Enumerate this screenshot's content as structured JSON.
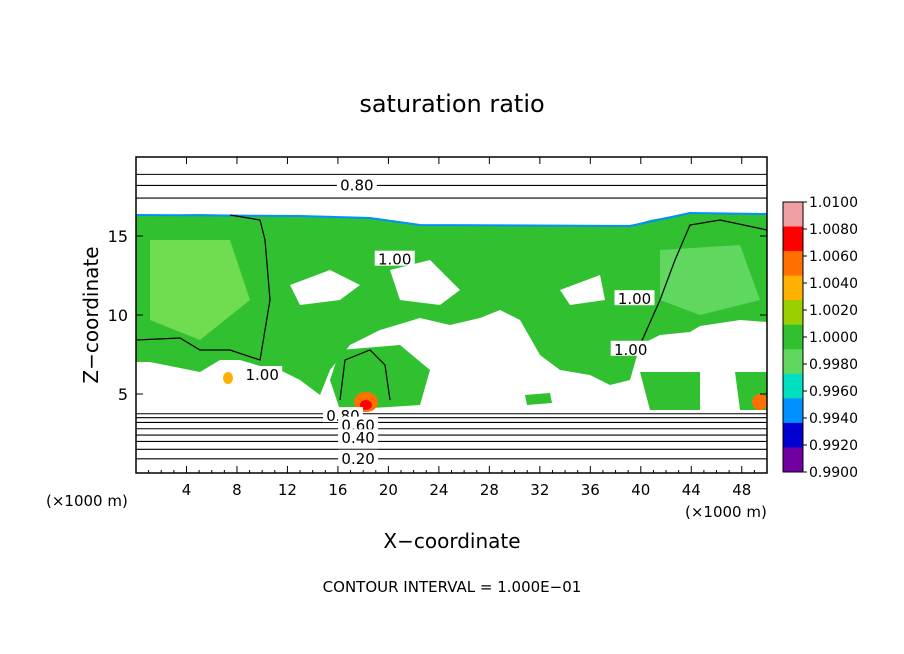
{
  "chart_data": {
    "type": "heatmap",
    "title": "saturation ratio",
    "xlabel": "X−coordinate",
    "ylabel": "Z−coordinate",
    "x_unit": "(×1000 m)",
    "y_unit": "(×1000 m)",
    "footer": "CONTOUR INTERVAL = 1.000E−01",
    "xlim": [
      0,
      50
    ],
    "ylim": [
      0,
      20
    ],
    "x_ticks": [
      4,
      8,
      12,
      16,
      20,
      24,
      28,
      32,
      36,
      40,
      44,
      48
    ],
    "y_ticks": [
      5,
      10,
      15
    ],
    "colorbar": {
      "values": [
        1.01,
        1.008,
        1.006,
        1.004,
        1.002,
        1.0,
        0.998,
        0.996,
        0.994,
        0.992,
        0.99
      ],
      "labels": [
        "1.0100",
        "1.0080",
        "1.0060",
        "1.0040",
        "1.0020",
        "1.0000",
        "0.9980",
        "0.9960",
        "0.9940",
        "0.9920",
        "0.9900"
      ],
      "colors": [
        "#f0a0a0",
        "#ff0000",
        "#ff7000",
        "#ffb000",
        "#9ad000",
        "#30c030",
        "#60d860",
        "#00e0c0",
        "#0090ff",
        "#0000d0",
        "#7000a0"
      ]
    },
    "contour_labels": [
      {
        "text": "0.80",
        "x": 17.5,
        "z": 18.2
      },
      {
        "text": "1.00",
        "x": 20.5,
        "z": 13.5
      },
      {
        "text": "1.00",
        "x": 39.5,
        "z": 11.0
      },
      {
        "text": "1.00",
        "x": 39.2,
        "z": 7.8
      },
      {
        "text": "1.00",
        "x": 10.0,
        "z": 6.2
      },
      {
        "text": "0.80",
        "x": 16.4,
        "z": 3.6
      },
      {
        "text": "0.60",
        "x": 17.6,
        "z": 3.0
      },
      {
        "text": "0.40",
        "x": 17.6,
        "z": 2.2
      },
      {
        "text": "0.20",
        "x": 17.6,
        "z": 0.9
      }
    ],
    "contour_levels_z": [
      0.9,
      1.5,
      2.0,
      2.4,
      2.8,
      3.2,
      3.5,
      3.75,
      17.4,
      18.2,
      18.9
    ]
  }
}
